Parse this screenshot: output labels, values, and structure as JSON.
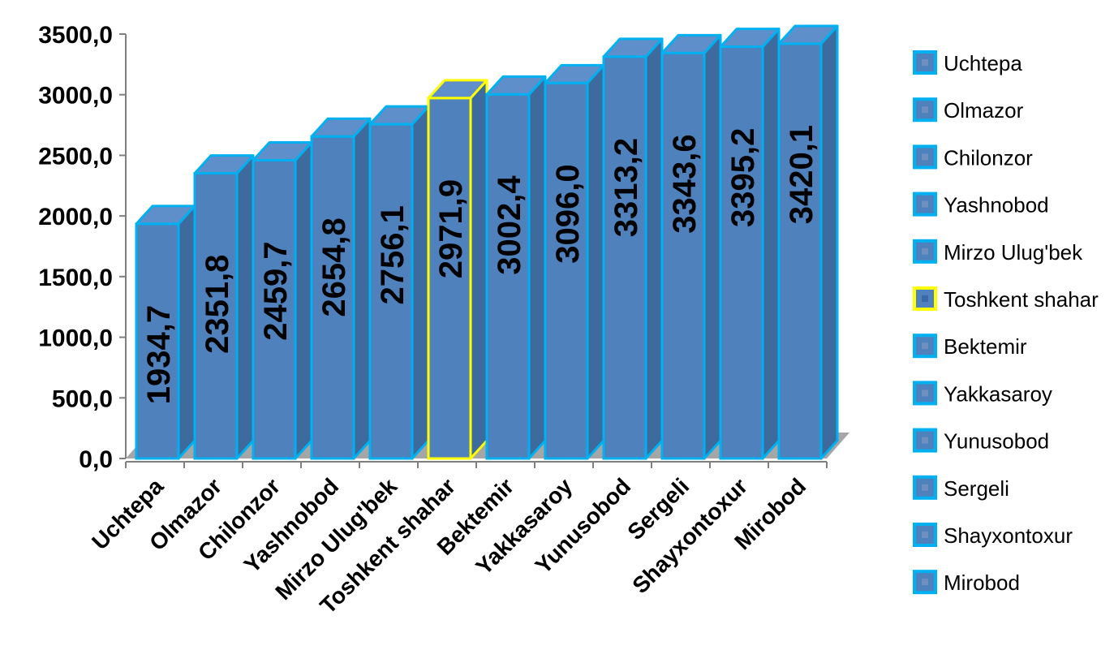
{
  "chart_data": {
    "type": "bar",
    "categories": [
      "Uchtepa",
      "Olmazor",
      "Chilonzor",
      "Yashnobod",
      "Mirzo Ulug'bek",
      "Toshkent shahar",
      "Bektemir",
      "Yakkasaroy",
      "Yunusobod",
      "Sergeli",
      "Shayxontoxur",
      "Mirobod"
    ],
    "values": [
      1934.7,
      2351.8,
      2459.7,
      2654.8,
      2756.1,
      2971.9,
      3002.4,
      3096.0,
      3313.2,
      3343.6,
      3395.2,
      3420.1
    ],
    "value_labels": [
      "1934,7",
      "2351,8",
      "2459,7",
      "2654,8",
      "2756,1",
      "2971,9",
      "3002,4",
      "3096,0",
      "3313,2",
      "3343,6",
      "3395,2",
      "3420,1"
    ],
    "y_ticks": [
      0,
      500,
      1000,
      1500,
      2000,
      2500,
      3000,
      3500
    ],
    "y_tick_labels": [
      "0,0",
      "500,0",
      "1000,0",
      "1500,0",
      "2000,0",
      "2500,0",
      "3000,0",
      "3500,0"
    ],
    "ylim": [
      0,
      3500
    ],
    "title": "",
    "xlabel": "",
    "ylabel": "",
    "legend": {
      "position": "right",
      "entries": [
        "Uchtepa",
        "Olmazor",
        "Chilonzor",
        "Yashnobod",
        "Mirzo Ulug'bek",
        "Toshkent shahar",
        "Bektemir",
        "Yakkasaroy",
        "Yunusobod",
        "Sergeli",
        "Shayxontoxur",
        "Mirobod"
      ]
    },
    "highlight_category": "Toshkent shahar",
    "grid": false,
    "style": "3d-column",
    "colors": {
      "bar_face": "#4f81bd",
      "bar_side": "#3d6b9e",
      "bar_top": "#5e8fcb",
      "bar_outline": "#00b0f0",
      "highlight_outline": "#ffff00",
      "label_text": "#000000",
      "floor": "#a6a6a6",
      "axis": "#7f7f7f"
    }
  }
}
